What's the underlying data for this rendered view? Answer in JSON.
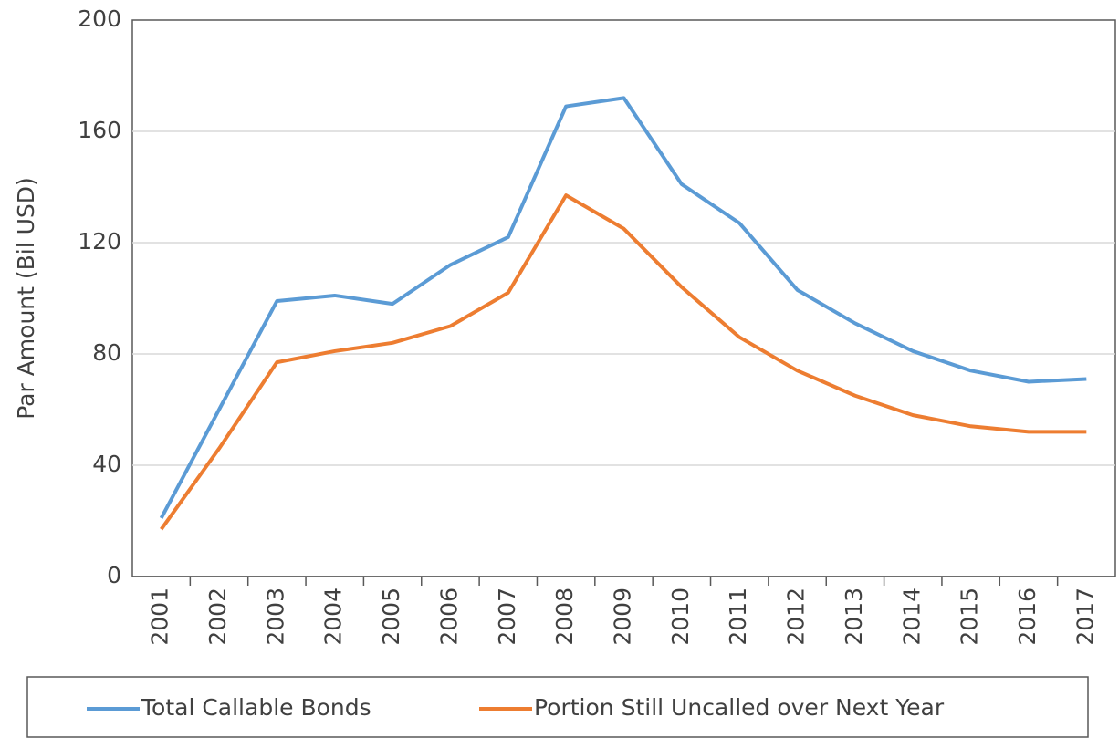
{
  "chart_data": {
    "type": "line",
    "y_label": "Par Amount (Bil USD)",
    "categories": [
      "2001",
      "2002",
      "2003",
      "2004",
      "2005",
      "2006",
      "2007",
      "2008",
      "2009",
      "2010",
      "2011",
      "2012",
      "2013",
      "2014",
      "2015",
      "2016",
      "2017"
    ],
    "series": [
      {
        "name": "Total Callable Bonds",
        "color": "#5b9bd5",
        "values": [
          21,
          60,
          99,
          101,
          98,
          112,
          122,
          169,
          172,
          141,
          127,
          103,
          91,
          81,
          74,
          70,
          71
        ]
      },
      {
        "name": "Portion Still Uncalled over Next Year",
        "color": "#ed7d31",
        "values": [
          17,
          46,
          77,
          81,
          84,
          90,
          102,
          137,
          125,
          104,
          86,
          74,
          65,
          58,
          54,
          52,
          52
        ]
      }
    ],
    "ylim": [
      0,
      200
    ],
    "yticks": [
      0,
      40,
      80,
      120,
      160,
      200
    ],
    "grid": true,
    "legend": "bottom"
  }
}
